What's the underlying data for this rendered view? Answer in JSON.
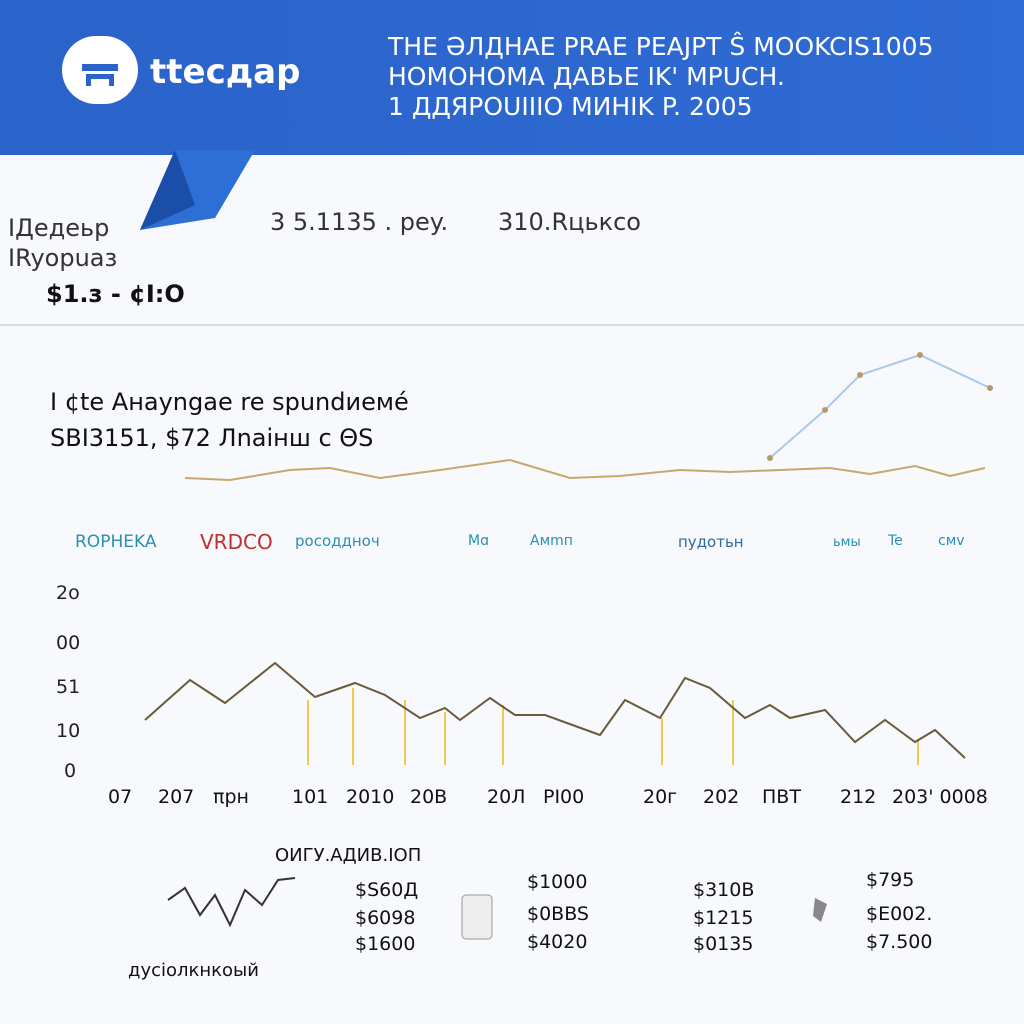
{
  "header": {
    "logo": "ttecдap",
    "title_lines": [
      "THE ƏЛДНAE PRAE PEAJPT Ŝ MOOKCIS1005",
      "HOMOHOMA ДABЬE IK' MPUCH.",
      "1 ДДЯPOUIIIO MИHIK P. 2005"
    ]
  },
  "info": {
    "labels": [
      "IДeдeьp",
      "IRyopuaз"
    ],
    "amount": "$1.з - ¢I:O",
    "stats": [
      "3 5.1135 . pey.",
      "310.Rцькco"
    ]
  },
  "section": {
    "title": "I ¢te Aнayngae re spundиeмé",
    "subtitle": "SBI3151, $72 Лnaiнш c ΘS"
  },
  "legend": [
    "ROPHEKA",
    "VRDCO",
    "pocoдднoч",
    "Mɑ",
    "Aмmп",
    "пyдoтьн",
    "ьмы",
    "Te",
    "cмv"
  ],
  "axis": {
    "y_labels": [
      "2o",
      "00",
      "51",
      "10",
      "0"
    ],
    "x_labels": [
      "07",
      "207",
      "πpн",
      "101",
      "2010",
      "20B",
      "20Л",
      "PI00",
      "20г",
      "202",
      "ПBT",
      "212",
      "203' 0008"
    ]
  },
  "footer": {
    "heading": "OИГУ.AДИB.IOП",
    "caption": "дyсioлкнкoый",
    "columns": [
      [
        "$S60Д",
        "$6098",
        "$1600"
      ],
      [
        "$1000",
        "$0BBS",
        "$4020"
      ],
      [
        "$310B",
        "$1215",
        "$0135"
      ],
      [
        "$795",
        "$E002.",
        "$7.500"
      ]
    ]
  }
}
